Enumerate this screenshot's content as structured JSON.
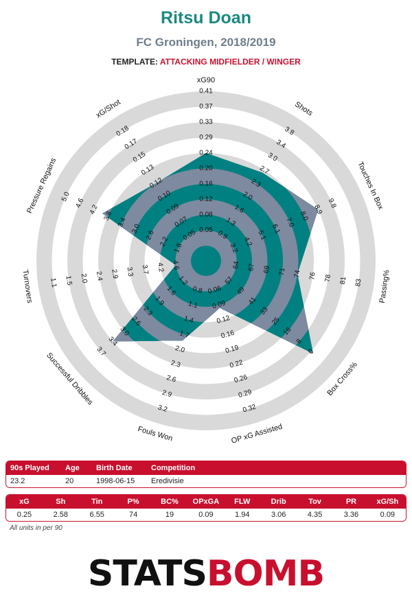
{
  "header": {
    "player": "Ritsu Doan",
    "club_season": "FC Groningen, 2018/2019",
    "template_label": "TEMPLATE:",
    "template_role": "ATTACKING MIDFIELDER / WINGER"
  },
  "colors": {
    "accent": "#c8102e",
    "title": "#1a8a80",
    "radar_fill": "#008080",
    "radar_overlay": "#7d8aa0",
    "ring_grey": "#d9d9d9"
  },
  "chart_data": {
    "type": "radar",
    "rings": 10,
    "axes": [
      {
        "name": "xG90",
        "value": 0.25,
        "ticks": [
          "0.05",
          "0.08",
          "0.12",
          "0.16",
          "0.20",
          "0.24",
          "0.29",
          "0.33",
          "0.37",
          "0.41"
        ]
      },
      {
        "name": "Shots",
        "value": 2.58,
        "ticks": [
          "0.9",
          "1.3",
          "1.6",
          "2.0",
          "2.3",
          "2.7",
          "3.0",
          "3.4",
          "3.8"
        ]
      },
      {
        "name": "Touches In Box",
        "value": 6.55,
        "ticks": [
          "3.2",
          "4.2",
          "5.1",
          "6.1",
          "7.0",
          "8.0",
          "8.9",
          "9.8"
        ]
      },
      {
        "name": "Passing%",
        "value": 74,
        "ticks": [
          "64",
          "67",
          "69",
          "71",
          "74",
          "76",
          "78",
          "81",
          "83"
        ]
      },
      {
        "name": "Box Cross%",
        "value": 19,
        "ticks": [
          "57",
          "49",
          "41",
          "33",
          "25",
          "16",
          "8",
          "0"
        ]
      },
      {
        "name": "OP xG Assisted",
        "value": 0.09,
        "ticks": [
          "0.06",
          "0.09",
          "0.12",
          "0.16",
          "0.19",
          "0.22",
          "0.26",
          "0.29",
          "0.32"
        ]
      },
      {
        "name": "Fouls Won",
        "value": 1.94,
        "ticks": [
          "0.8",
          "1.1",
          "1.4",
          "1.7",
          "2.0",
          "2.3",
          "2.6",
          "2.9",
          "3.2"
        ]
      },
      {
        "name": "Successful Dribbles",
        "value": 3.06,
        "ticks": [
          "1.2",
          "1.6",
          "1.9",
          "2.3",
          "2.6",
          "3.0",
          "3.4",
          "3.7"
        ]
      },
      {
        "name": "Turnovers",
        "value": 4.35,
        "ticks": [
          "4.6",
          "4.2",
          "3.7",
          "3.3",
          "2.9",
          "2.4",
          "2.0",
          "1.5",
          "1.1"
        ]
      },
      {
        "name": "Pressure Regains",
        "value": 3.36,
        "ticks": [
          "1.8",
          "2.2",
          "2.6",
          "3.0",
          "3.4",
          "3.8",
          "4.2",
          "4.6",
          "5.0"
        ]
      },
      {
        "name": "xG/Shot",
        "value": 0.09,
        "ticks": [
          "0.05",
          "0.07",
          "0.09",
          "0.10",
          "0.12",
          "0.13",
          "0.15",
          "0.17",
          "0.18"
        ]
      }
    ],
    "levels": [
      0.6,
      0.58,
      0.7,
      0.5,
      0.82,
      0.22,
      0.44,
      0.7,
      0.1,
      0.64,
      0.5
    ]
  },
  "profile": {
    "headers": [
      "90s Played",
      "Age",
      "Birth Date",
      "Competition"
    ],
    "values": [
      "23.2",
      "20",
      "1998-06-15",
      "Eredivisie"
    ]
  },
  "stats": {
    "headers": [
      "xG",
      "Sh",
      "Tin",
      "P%",
      "BC%",
      "OPxGA",
      "FLW",
      "Drib",
      "Tov",
      "PR",
      "xG/Sh"
    ],
    "values": [
      "0.25",
      "2.58",
      "6.55",
      "74",
      "19",
      "0.09",
      "1.94",
      "3.06",
      "4.35",
      "3.36",
      "0.09"
    ]
  },
  "footer": {
    "note": "All units in per 90",
    "logo_a": "STATS",
    "logo_b": "BOMB"
  }
}
